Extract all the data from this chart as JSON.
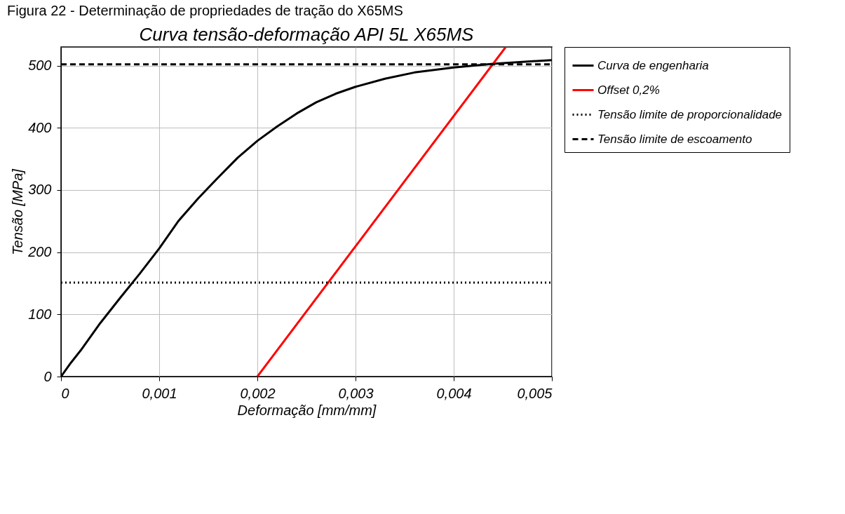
{
  "chart_data": {
    "type": "line",
    "title": "Curva tensão-deformação API 5L X65MS",
    "xlabel": "Deformação [mm/mm]",
    "ylabel": "Tensão [MPa]",
    "annotations": [
      "Figura 22 - Determinação de propriedades de tração do X65MS"
    ],
    "xlim": [
      0,
      0.005
    ],
    "ylim": [
      0,
      530
    ],
    "xticks": [
      0,
      {
        "value": 0.001,
        "label": "0,001"
      },
      {
        "value": 0.002,
        "label": "0,002"
      },
      {
        "value": 0.003,
        "label": "0,003"
      },
      {
        "value": 0.004,
        "label": "0,004"
      },
      {
        "value": 0.005,
        "label": "0,005"
      }
    ],
    "yticks": [
      0,
      100,
      200,
      300,
      400,
      500
    ],
    "grid": true,
    "legend": "right",
    "line_style": "solid",
    "series": [
      {
        "name": "Curva de engenharia",
        "color": "#000000",
        "x": [
          0,
          0.0001,
          0.0002,
          0.0004,
          0.0006,
          0.0008,
          0.001,
          0.0012,
          0.0014,
          0.0016,
          0.0018,
          0.002,
          0.0022,
          0.0024,
          0.0026,
          0.0028,
          0.003,
          0.0033,
          0.0036,
          0.004,
          0.0044,
          0.005
        ],
        "values": [
          0,
          22,
          42,
          86,
          126,
          165,
          206,
          251,
          287,
          320,
          352,
          379,
          402,
          423,
          441,
          455,
          466,
          479,
          489,
          497,
          503,
          509
        ]
      },
      {
        "name": "Offset 0,2%",
        "color": "#ff0000",
        "x": [
          0.002,
          0.00453
        ],
        "values": [
          0,
          530
        ]
      }
    ],
    "ref_lines": [
      {
        "axis": "y",
        "value": 151,
        "label": "Tensão limite de proporcionalidade",
        "color": "#000000",
        "line_style": "dotted"
      },
      {
        "axis": "y",
        "value": 502,
        "label": "Tensão limite de escoamento",
        "color": "#000000",
        "line_style": "dashed"
      }
    ]
  }
}
